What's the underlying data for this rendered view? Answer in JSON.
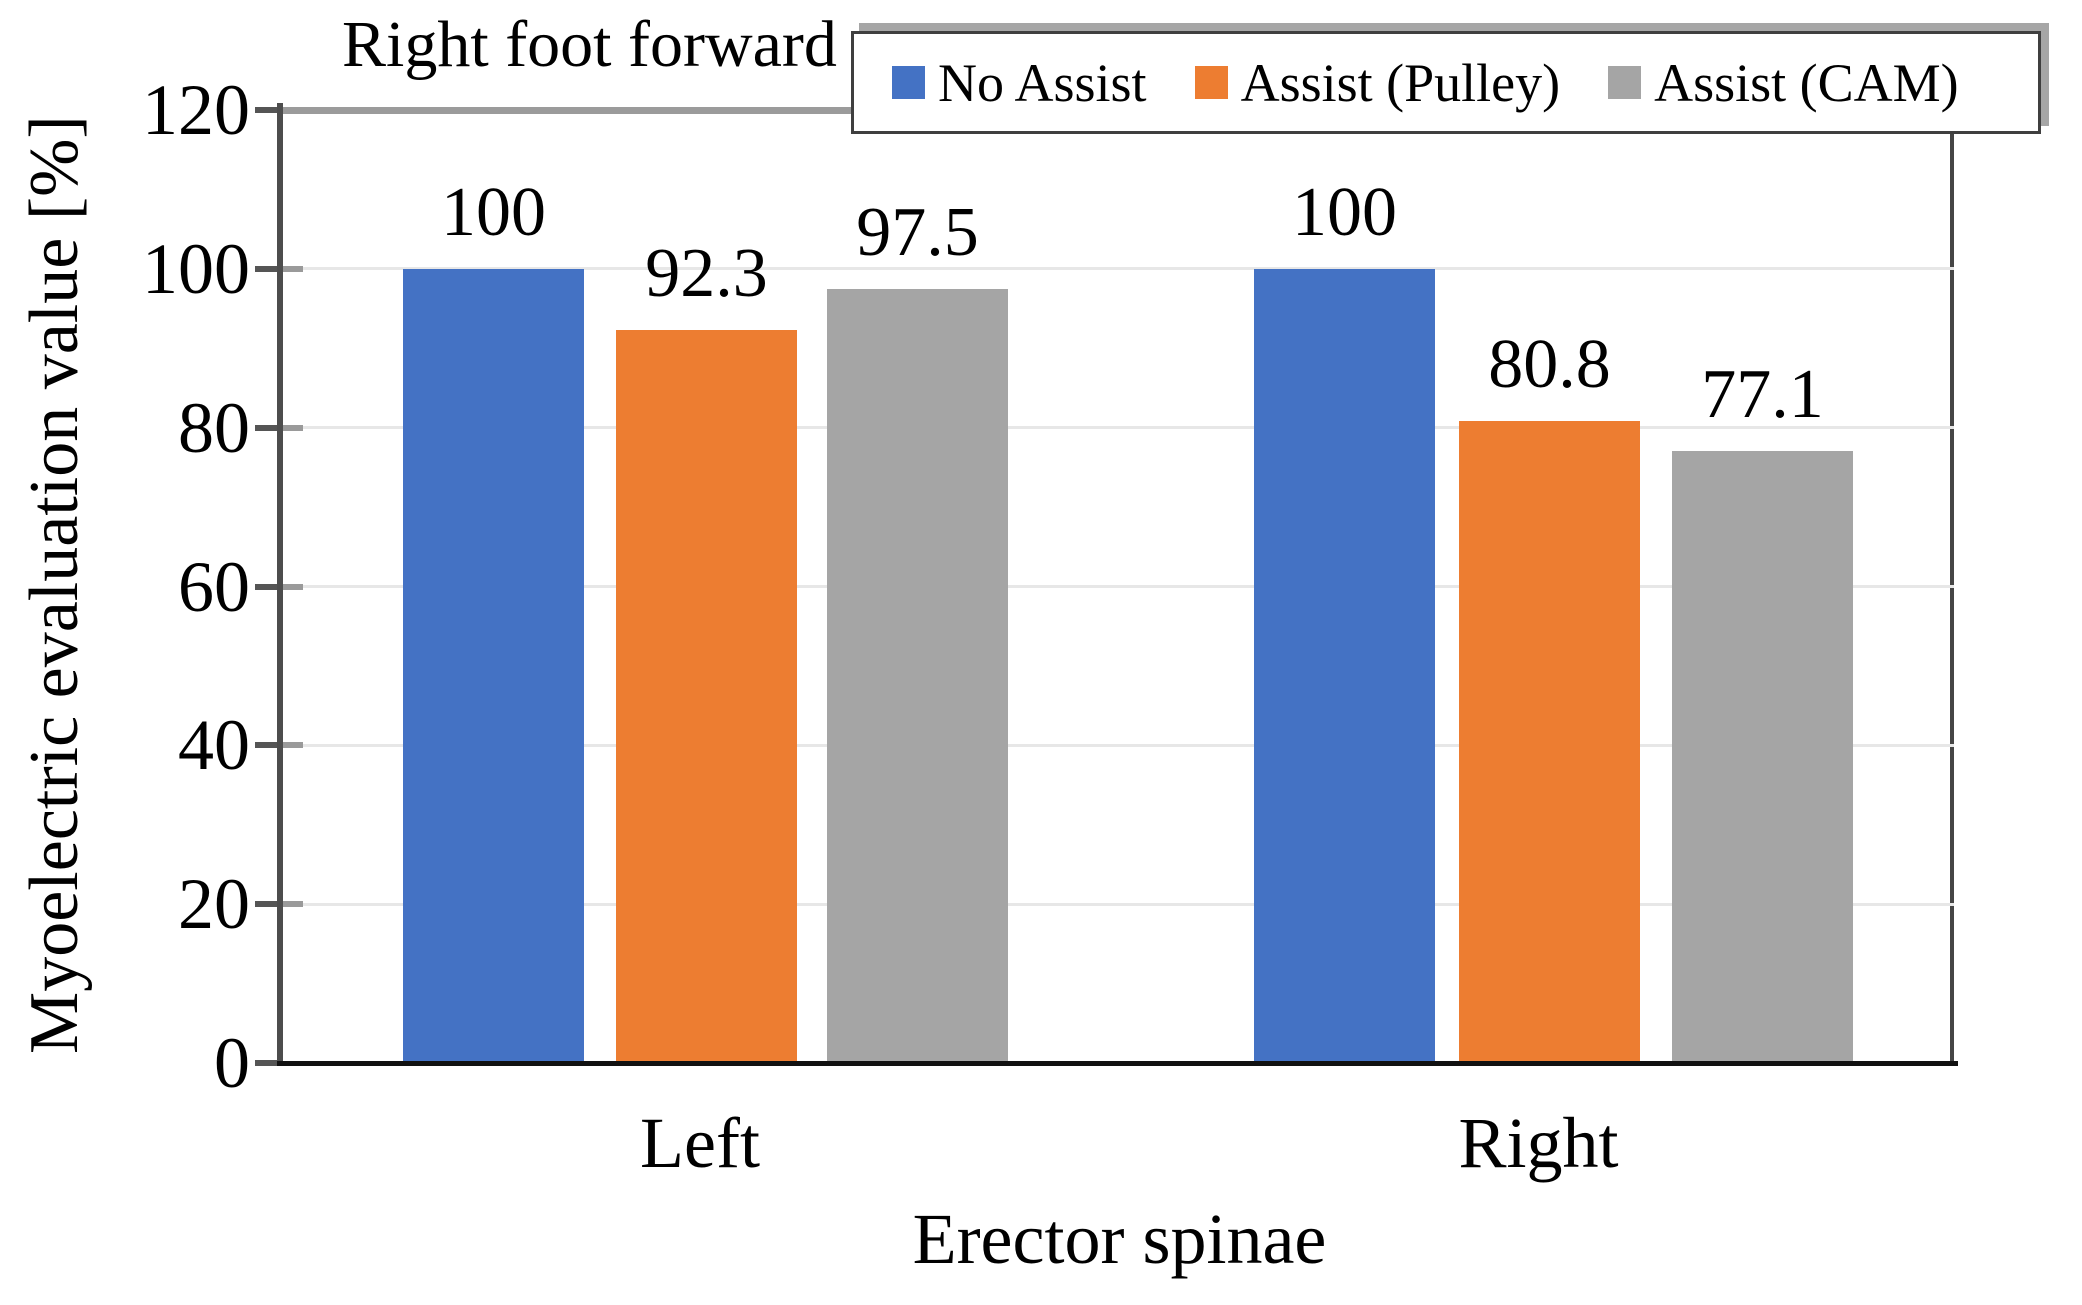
{
  "chart_data": {
    "type": "bar",
    "title": "Right foot forward",
    "categories": [
      "Left",
      "Right"
    ],
    "series": [
      {
        "name": "No Assist",
        "color": "#4472C4",
        "values": [
          100,
          100
        ]
      },
      {
        "name": "Assist (Pulley)",
        "color": "#ED7D31",
        "values": [
          92.3,
          80.8
        ]
      },
      {
        "name": "Assist (CAM)",
        "color": "#A5A5A5",
        "values": [
          97.5,
          77.1
        ]
      }
    ],
    "xlabel": "Erector spinae",
    "ylabel": "Myoelectric evaluation value [%]",
    "ylim": [
      0,
      120
    ],
    "yticks": [
      0,
      20,
      40,
      60,
      80,
      100,
      120
    ],
    "grid": true,
    "legend_position": "top-right"
  }
}
